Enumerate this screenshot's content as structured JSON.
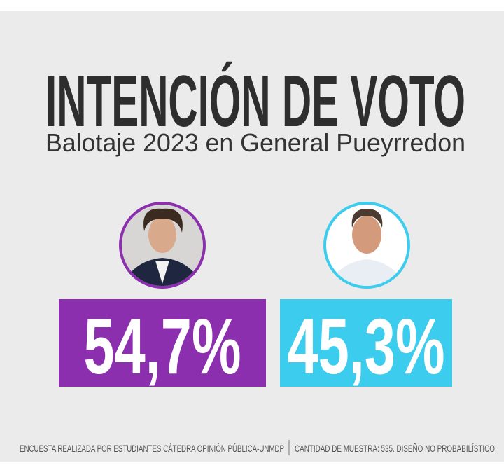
{
  "title": "INTENCIÓN DE VOTO",
  "subtitle": "Balotaje 2023 en General Pueyrredon",
  "candidates": [
    {
      "percentage": "54,7%"
    },
    {
      "percentage": "45,3%"
    }
  ],
  "footer": {
    "left": "ENCUESTA REALIZADA POR ESTUDIANTES CÁTEDRA OPINIÓN PÚBLICA-UNMDP",
    "right": "CANTIDAD DE MUESTRA: 535. DISEÑO NO PROBABILÍSTICO"
  }
}
